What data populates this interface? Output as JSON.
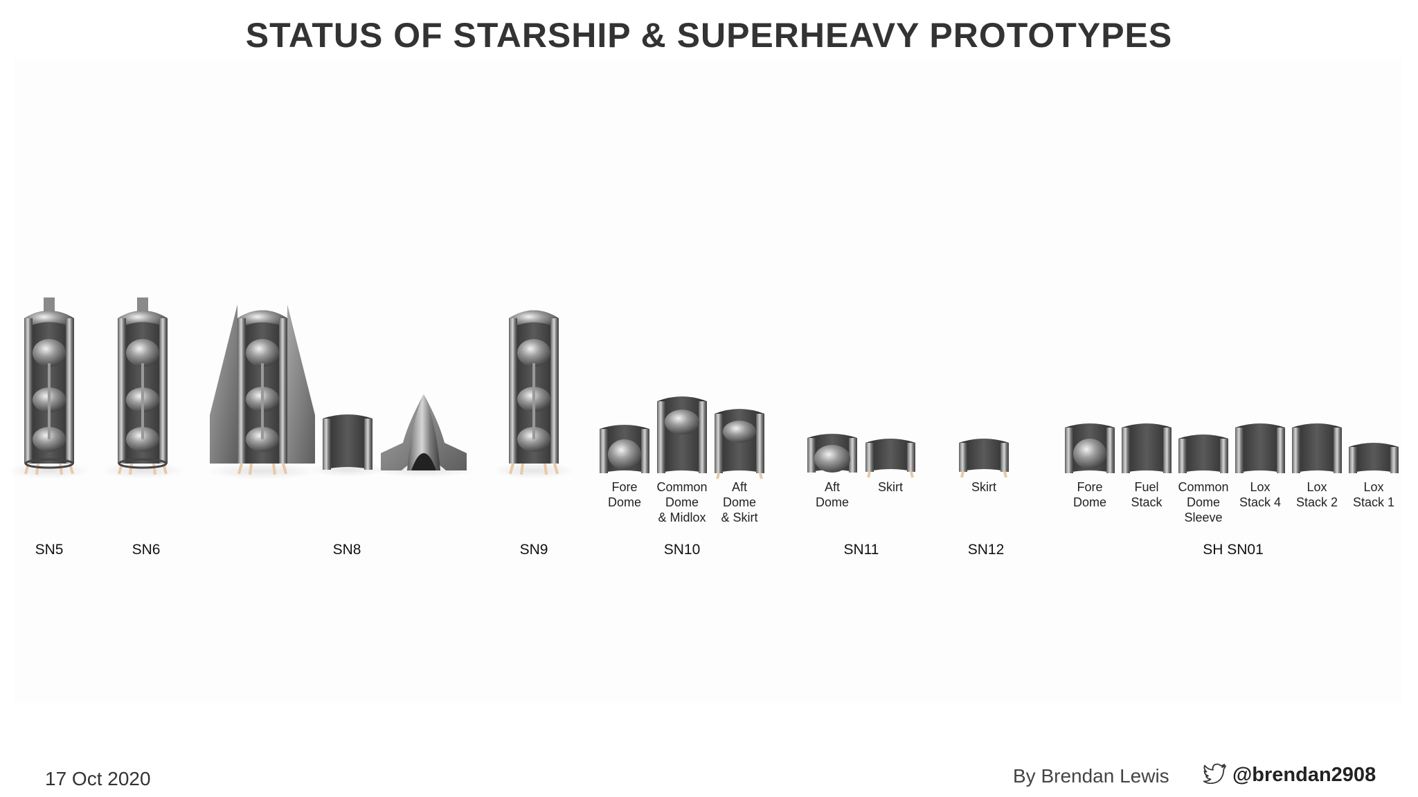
{
  "title": "STATUS OF STARSHIP & SUPERHEAVY PROTOTYPES",
  "groups": [
    {
      "name": "SN5",
      "parts": [
        {
          "kind": "full_tank",
          "label": ""
        }
      ]
    },
    {
      "name": "SN6",
      "parts": [
        {
          "kind": "full_tank",
          "label": ""
        }
      ]
    },
    {
      "name": "SN8",
      "parts": [
        {
          "kind": "full_tank_fins",
          "label": ""
        },
        {
          "kind": "ring",
          "label": ""
        },
        {
          "kind": "nosecone",
          "label": ""
        }
      ]
    },
    {
      "name": "SN9",
      "parts": [
        {
          "kind": "full_tank",
          "label": ""
        }
      ]
    },
    {
      "name": "SN10",
      "parts": [
        {
          "kind": "ring_dome",
          "label": "Fore\nDome"
        },
        {
          "kind": "ring_dome",
          "label": "Common\nDome\n& Midlox"
        },
        {
          "kind": "ring_dome",
          "label": "Aft\nDome\n& Skirt"
        }
      ]
    },
    {
      "name": "SN11",
      "parts": [
        {
          "kind": "ring_dome",
          "label": "Aft\nDome"
        },
        {
          "kind": "ring",
          "label": "Skirt"
        }
      ]
    },
    {
      "name": "SN12",
      "parts": [
        {
          "kind": "ring",
          "label": "Skirt"
        }
      ]
    },
    {
      "name": "SH SN01",
      "parts": [
        {
          "kind": "ring_dome",
          "label": "Fore\nDome"
        },
        {
          "kind": "ring",
          "label": "Fuel\nStack"
        },
        {
          "kind": "ring",
          "label": "Common\nDome\nSleeve"
        },
        {
          "kind": "ring",
          "label": "Lox\nStack 4"
        },
        {
          "kind": "ring",
          "label": "Lox\nStack 2"
        },
        {
          "kind": "ring",
          "label": "Lox\nStack 1"
        }
      ]
    }
  ],
  "date": "17 Oct 2020",
  "credit": "By Brendan Lewis",
  "twitter_handle": "@brendan2908",
  "icons": {
    "social": "twitter-bird-icon"
  },
  "colors": {
    "title": "#333333",
    "metal_dark": "#3a3a3a",
    "metal_light": "#bdbdbd",
    "legs": "#e8c9a6"
  }
}
